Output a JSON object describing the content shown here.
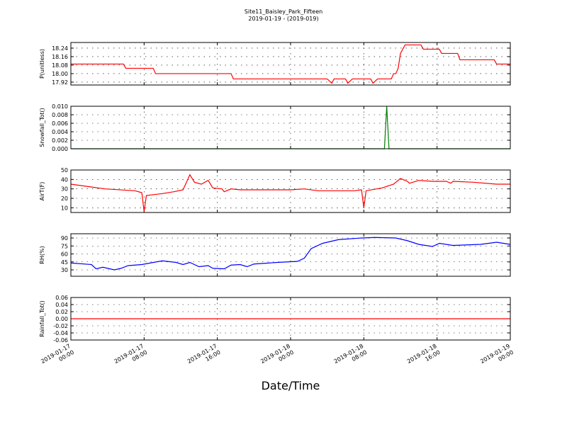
{
  "figure": {
    "title": "Site11_Baisley_Park_Fifteen",
    "subtitle": "2019-01-19 - (2019-019)",
    "xlabel": "Date/Time",
    "xlim": [
      "2019-01-17 00:00",
      "2019-01-19 00:00"
    ],
    "xticks": [
      {
        "value": "2019-01-17 00:00",
        "label": [
          "2019-01-17",
          "00:00"
        ]
      },
      {
        "value": "2019-01-17 08:00",
        "label": [
          "2019-01-17",
          "08:00"
        ]
      },
      {
        "value": "2019-01-17 16:00",
        "label": [
          "2019-01-17",
          "16:00"
        ]
      },
      {
        "value": "2019-01-18 00:00",
        "label": [
          "2019-01-18",
          "00:00"
        ]
      },
      {
        "value": "2019-01-18 08:00",
        "label": [
          "2019-01-18",
          "08:00"
        ]
      },
      {
        "value": "2019-01-18 16:00",
        "label": [
          "2019-01-18",
          "16:00"
        ]
      },
      {
        "value": "2019-01-19 00:00",
        "label": [
          "2019-01-19",
          "00:00"
        ]
      }
    ]
  },
  "chart_data": [
    {
      "type": "line",
      "ylabel": "P(unitless)",
      "ylim": [
        17.893,
        18.293
      ],
      "grid": true,
      "yticks": [
        17.92,
        {
          "value": 18.0,
          "label": "18.00"
        },
        18.08,
        18.16,
        18.24
      ],
      "series": [
        {
          "color": "#ff0000",
          "x": [
            "2019-01-17 00:00",
            "2019-01-17 05:45",
            "2019-01-17 06:00",
            "2019-01-17 09:00",
            "2019-01-17 09:15",
            "2019-01-17 17:30",
            "2019-01-17 17:45",
            "2019-01-18 04:00",
            "2019-01-18 04:30",
            "2019-01-18 04:45",
            "2019-01-18 06:00",
            "2019-01-18 06:15",
            "2019-01-18 06:45",
            "2019-01-18 08:45",
            "2019-01-18 09:00",
            "2019-01-18 09:30",
            "2019-01-18 11:00",
            "2019-01-18 11:15",
            "2019-01-18 11:30",
            "2019-01-18 11:45",
            "2019-01-18 12:00",
            "2019-01-18 12:30",
            "2019-01-18 14:15",
            "2019-01-18 14:30",
            "2019-01-18 16:15",
            "2019-01-18 16:30",
            "2019-01-18 18:15",
            "2019-01-18 18:30",
            "2019-01-18 22:15",
            "2019-01-18 22:30",
            "2019-01-19 00:00"
          ],
          "values": [
            18.09,
            18.09,
            18.05,
            18.05,
            18.0,
            18.0,
            17.95,
            17.95,
            17.91,
            17.95,
            17.95,
            17.91,
            17.95,
            17.95,
            17.91,
            17.95,
            17.95,
            18.0,
            18.0,
            18.05,
            18.19,
            18.27,
            18.27,
            18.23,
            18.23,
            18.19,
            18.19,
            18.13,
            18.13,
            18.09,
            18.09
          ]
        }
      ]
    },
    {
      "type": "line",
      "ylabel": "Snowfall_Tot()",
      "ylim": [
        0,
        0.01
      ],
      "grid": true,
      "yticks": [
        {
          "value": 0,
          "label": "0.000"
        },
        0.002,
        0.004,
        0.006,
        0.008,
        {
          "value": 0.01,
          "label": "0.010"
        }
      ],
      "series": [
        {
          "color": "#007f00",
          "x": [
            "2019-01-17 00:00",
            "2019-01-18 10:15",
            "2019-01-18 10:30",
            "2019-01-18 10:45",
            "2019-01-19 00:00"
          ],
          "values": [
            0,
            0,
            0.01,
            0,
            0
          ]
        }
      ]
    },
    {
      "type": "line",
      "ylabel": "AirT(F)",
      "ylim": [
        5,
        50
      ],
      "grid": true,
      "yticks": [
        10,
        20,
        30,
        40,
        50
      ],
      "series": [
        {
          "color": "#ff0000",
          "x": [
            "2019-01-17 00:00",
            "2019-01-17 03:45",
            "2019-01-17 07:00",
            "2019-01-17 07:45",
            "2019-01-17 08:00",
            "2019-01-17 08:15",
            "2019-01-17 10:00",
            "2019-01-17 11:15",
            "2019-01-17 12:15",
            "2019-01-17 13:00",
            "2019-01-17 13:30",
            "2019-01-17 14:15",
            "2019-01-17 15:00",
            "2019-01-17 15:30",
            "2019-01-17 16:30",
            "2019-01-17 16:45",
            "2019-01-17 17:30",
            "2019-01-17 18:30",
            "2019-01-18 00:00",
            "2019-01-18 01:30",
            "2019-01-18 03:00",
            "2019-01-18 07:00",
            "2019-01-18 07:45",
            "2019-01-18 08:00",
            "2019-01-18 08:15",
            "2019-01-18 10:00",
            "2019-01-18 11:15",
            "2019-01-18 12:00",
            "2019-01-18 12:45",
            "2019-01-18 13:00",
            "2019-01-18 14:00",
            "2019-01-18 15:30",
            "2019-01-18 17:00",
            "2019-01-18 17:30",
            "2019-01-18 17:45",
            "2019-01-18 20:00",
            "2019-01-18 22:30",
            "2019-01-19 00:00"
          ],
          "values": [
            35,
            30,
            28,
            26,
            6,
            23,
            25,
            27,
            29,
            45,
            37,
            35,
            39,
            31,
            30,
            27,
            30,
            29,
            29,
            30,
            28,
            28,
            29,
            10,
            28,
            31,
            35,
            41,
            38,
            36,
            39,
            38,
            38,
            36,
            38,
            37,
            35,
            35
          ]
        }
      ]
    },
    {
      "type": "line",
      "ylabel": "RH(%)",
      "ylim": [
        18,
        98
      ],
      "grid": true,
      "yticks": [
        30,
        45,
        60,
        75,
        90
      ],
      "series": [
        {
          "color": "#0000ff",
          "x": [
            "2019-01-17 00:00",
            "2019-01-17 02:15",
            "2019-01-17 02:45",
            "2019-01-17 03:30",
            "2019-01-17 04:45",
            "2019-01-17 05:30",
            "2019-01-17 06:15",
            "2019-01-17 07:45",
            "2019-01-17 09:00",
            "2019-01-17 10:00",
            "2019-01-17 11:30",
            "2019-01-17 12:15",
            "2019-01-17 13:00",
            "2019-01-17 14:00",
            "2019-01-17 15:00",
            "2019-01-17 15:30",
            "2019-01-17 16:45",
            "2019-01-17 17:30",
            "2019-01-17 18:30",
            "2019-01-17 19:15",
            "2019-01-17 20:00",
            "2019-01-17 22:30",
            "2019-01-18 00:45",
            "2019-01-18 01:30",
            "2019-01-18 02:15",
            "2019-01-18 03:30",
            "2019-01-18 05:15",
            "2019-01-18 07:45",
            "2019-01-18 09:15",
            "2019-01-18 11:30",
            "2019-01-18 12:45",
            "2019-01-18 14:00",
            "2019-01-18 15:30",
            "2019-01-18 16:15",
            "2019-01-18 17:45",
            "2019-01-18 20:45",
            "2019-01-18 22:30",
            "2019-01-19 00:00"
          ],
          "values": [
            43,
            40,
            32,
            35,
            30,
            33,
            38,
            40,
            44,
            47,
            44,
            40,
            44,
            36,
            38,
            33,
            32,
            39,
            40,
            36,
            41,
            44,
            46,
            52,
            70,
            80,
            87,
            90,
            91,
            90,
            85,
            78,
            74,
            80,
            76,
            78,
            82,
            78
          ]
        }
      ]
    },
    {
      "type": "line",
      "ylabel": "Rainfall_Tot()",
      "ylim": [
        -0.06,
        0.06
      ],
      "grid": true,
      "yticks": [
        -0.06,
        -0.04,
        -0.02,
        {
          "value": 0,
          "label": "0.00"
        },
        0.02,
        0.04,
        0.06
      ],
      "series": [
        {
          "color": "#ff0000",
          "x": [
            "2019-01-17 00:00",
            "2019-01-19 00:00"
          ],
          "values": [
            0,
            0
          ]
        }
      ]
    }
  ]
}
